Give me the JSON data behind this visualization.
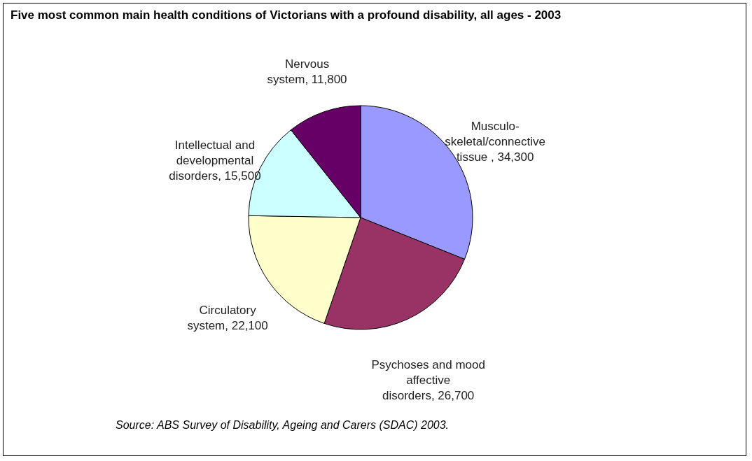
{
  "chart_data": {
    "type": "pie",
    "title": "Five most common main health conditions of Victorians with a profound disability, all ages - 2003",
    "categories": [
      "Musculo-skeletal/connective tissue ",
      "Psychoses and mood affective disorders",
      "Circulatory system",
      "Intellectual and developmental disorders",
      "Nervous system"
    ],
    "values": [
      34300,
      26700,
      22100,
      15500,
      11800
    ],
    "value_labels": [
      "34,300",
      "26,700",
      "22,100",
      "15,500",
      "11,800"
    ],
    "colors": [
      "#9999ff",
      "#993366",
      "#ffffcc",
      "#ccffff",
      "#660066"
    ],
    "annotations": [
      "Source: ABS Survey of Disability, Ageing and Carers (SDAC) 2003."
    ]
  }
}
